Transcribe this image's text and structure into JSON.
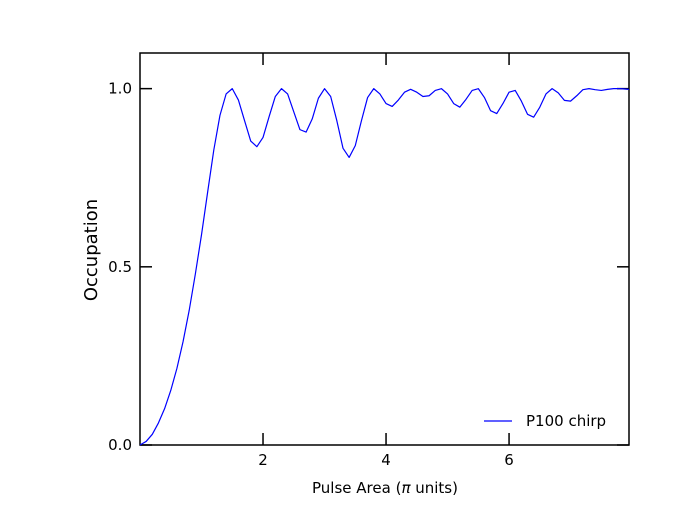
{
  "chart_data": {
    "type": "line",
    "title": "",
    "xlabel_prefix": "Pulse Area (",
    "xlabel_symbol": "π",
    "xlabel_suffix": " units)",
    "ylabel": "Occupation",
    "xlim": [
      0,
      7.95
    ],
    "ylim": [
      0,
      1.1
    ],
    "x_ticks": [
      2,
      4,
      6
    ],
    "x_tick_labels": [
      "2",
      "4",
      "6"
    ],
    "y_ticks": [
      0.0,
      0.5,
      1.0
    ],
    "y_tick_labels": [
      "0.0",
      "0.5",
      "1.0"
    ],
    "grid": false,
    "legend_position": "lower right",
    "colors": {
      "line": "#0000ff",
      "axes": "#000000"
    },
    "series": [
      {
        "name": "P100 chirp",
        "x": [
          0.0,
          0.1,
          0.2,
          0.3,
          0.4,
          0.5,
          0.6,
          0.7,
          0.8,
          0.9,
          1.0,
          1.1,
          1.2,
          1.3,
          1.4,
          1.5,
          1.6,
          1.7,
          1.8,
          1.9,
          2.0,
          2.1,
          2.2,
          2.3,
          2.4,
          2.5,
          2.6,
          2.7,
          2.8,
          2.9,
          3.0,
          3.1,
          3.2,
          3.3,
          3.4,
          3.5,
          3.6,
          3.7,
          3.8,
          3.9,
          4.0,
          4.1,
          4.2,
          4.3,
          4.4,
          4.5,
          4.6,
          4.7,
          4.8,
          4.9,
          5.0,
          5.1,
          5.2,
          5.3,
          5.4,
          5.5,
          5.6,
          5.7,
          5.8,
          5.9,
          6.0,
          6.1,
          6.2,
          6.3,
          6.4,
          6.5,
          6.6,
          6.7,
          6.8,
          6.9,
          7.0,
          7.1,
          7.2,
          7.3,
          7.4,
          7.5,
          7.6,
          7.7,
          7.8,
          7.95
        ],
        "y": [
          0.0,
          0.01,
          0.03,
          0.062,
          0.102,
          0.153,
          0.215,
          0.29,
          0.378,
          0.48,
          0.59,
          0.71,
          0.828,
          0.925,
          0.985,
          1.0,
          0.968,
          0.91,
          0.853,
          0.837,
          0.863,
          0.922,
          0.978,
          1.0,
          0.985,
          0.935,
          0.885,
          0.878,
          0.915,
          0.973,
          1.0,
          0.978,
          0.91,
          0.833,
          0.807,
          0.84,
          0.91,
          0.975,
          1.0,
          0.985,
          0.958,
          0.95,
          0.968,
          0.99,
          0.998,
          0.99,
          0.978,
          0.98,
          0.995,
          1.0,
          0.985,
          0.958,
          0.948,
          0.97,
          0.995,
          1.0,
          0.975,
          0.938,
          0.93,
          0.958,
          0.99,
          0.995,
          0.965,
          0.928,
          0.92,
          0.948,
          0.985,
          1.0,
          0.988,
          0.967,
          0.965,
          0.98,
          0.997,
          1.0,
          0.997,
          0.995,
          0.998,
          1.0,
          1.0,
          0.998
        ]
      }
    ]
  }
}
